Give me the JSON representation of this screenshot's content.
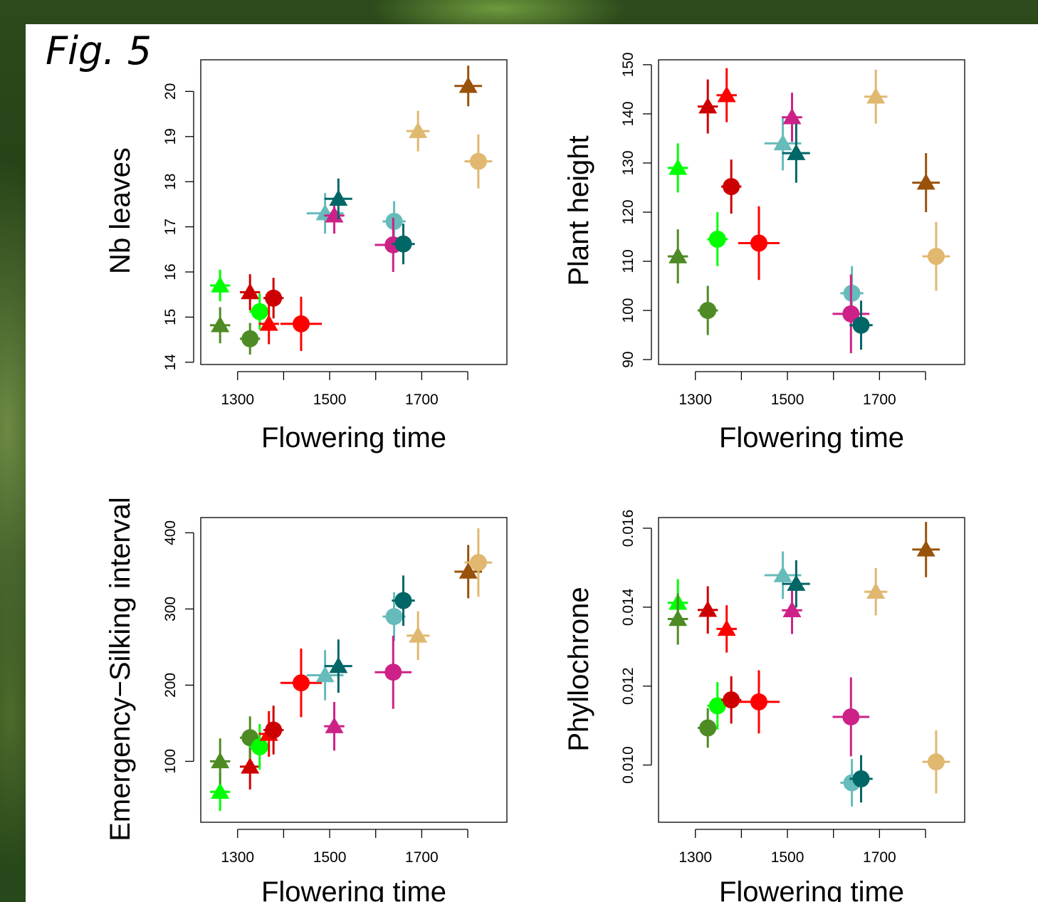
{
  "figure_label": "Fig. 5",
  "chart_data": [
    {
      "type": "scatter",
      "xlabel": "Flowering time",
      "ylabel": "Nb leaves",
      "xlim": [
        1220,
        1885
      ],
      "ylim": [
        13.95,
        20.7
      ],
      "x_ticks": [
        1300,
        1500,
        1700
      ],
      "y_ticks": [
        14,
        15,
        16,
        17,
        18,
        19,
        20
      ],
      "points": [
        {
          "x": 1262,
          "y": 15.7,
          "xerr": 22,
          "yerr": 0.35,
          "marker": "triangle",
          "color": "#00ff00"
        },
        {
          "x": 1262,
          "y": 14.82,
          "xerr": 22,
          "yerr": 0.4,
          "marker": "triangle",
          "color": "#4e8b24"
        },
        {
          "x": 1327,
          "y": 15.55,
          "xerr": 22,
          "yerr": 0.4,
          "marker": "triangle",
          "color": "#cc0000"
        },
        {
          "x": 1327,
          "y": 14.52,
          "xerr": 22,
          "yerr": 0.35,
          "marker": "circle",
          "color": "#4e8b24"
        },
        {
          "x": 1348,
          "y": 15.12,
          "xerr": 22,
          "yerr": 0.4,
          "marker": "circle",
          "color": "#00ff00"
        },
        {
          "x": 1368,
          "y": 14.85,
          "xerr": 22,
          "yerr": 0.45,
          "marker": "triangle",
          "color": "#ff0000"
        },
        {
          "x": 1378,
          "y": 15.42,
          "xerr": 22,
          "yerr": 0.45,
          "marker": "circle",
          "color": "#cc0000"
        },
        {
          "x": 1438,
          "y": 14.85,
          "xerr": 45,
          "yerr": 0.6,
          "marker": "circle",
          "color": "#ff0000"
        },
        {
          "x": 1490,
          "y": 17.3,
          "xerr": 40,
          "yerr": 0.45,
          "marker": "triangle",
          "color": "#66bbbb"
        },
        {
          "x": 1510,
          "y": 17.25,
          "xerr": 22,
          "yerr": 0.4,
          "marker": "triangle",
          "color": "#cc2288"
        },
        {
          "x": 1519,
          "y": 17.62,
          "xerr": 30,
          "yerr": 0.45,
          "marker": "triangle",
          "color": "#006666"
        },
        {
          "x": 1640,
          "y": 17.12,
          "xerr": 25,
          "yerr": 0.45,
          "marker": "circle",
          "color": "#66bbbb"
        },
        {
          "x": 1638,
          "y": 16.6,
          "xerr": 40,
          "yerr": 0.6,
          "marker": "circle",
          "color": "#cc2288"
        },
        {
          "x": 1660,
          "y": 16.62,
          "xerr": 25,
          "yerr": 0.45,
          "marker": "circle",
          "color": "#006666"
        },
        {
          "x": 1692,
          "y": 19.12,
          "xerr": 25,
          "yerr": 0.45,
          "marker": "triangle",
          "color": "#e0b870"
        },
        {
          "x": 1801,
          "y": 20.12,
          "xerr": 30,
          "yerr": 0.45,
          "marker": "triangle",
          "color": "#99520a"
        },
        {
          "x": 1823,
          "y": 18.45,
          "xerr": 30,
          "yerr": 0.6,
          "marker": "circle",
          "color": "#e0b870"
        }
      ]
    },
    {
      "type": "scatter",
      "xlabel": "Flowering time",
      "ylabel": "Plant height",
      "xlim": [
        1220,
        1885
      ],
      "ylim": [
        89,
        151
      ],
      "x_ticks": [
        1300,
        1500,
        1700
      ],
      "y_ticks": [
        90,
        100,
        110,
        120,
        130,
        140,
        150
      ],
      "points": [
        {
          "x": 1262,
          "y": 129,
          "xerr": 22,
          "yerr": 5,
          "marker": "triangle",
          "color": "#00ff00"
        },
        {
          "x": 1262,
          "y": 111,
          "xerr": 22,
          "yerr": 5.5,
          "marker": "triangle",
          "color": "#4e8b24"
        },
        {
          "x": 1327,
          "y": 141.5,
          "xerr": 22,
          "yerr": 5.5,
          "marker": "triangle",
          "color": "#cc0000"
        },
        {
          "x": 1327,
          "y": 100,
          "xerr": 22,
          "yerr": 5,
          "marker": "circle",
          "color": "#4e8b24"
        },
        {
          "x": 1348,
          "y": 114.5,
          "xerr": 22,
          "yerr": 5.5,
          "marker": "circle",
          "color": "#00ff00"
        },
        {
          "x": 1368,
          "y": 143.8,
          "xerr": 22,
          "yerr": 5.5,
          "marker": "triangle",
          "color": "#ff0000"
        },
        {
          "x": 1378,
          "y": 125.2,
          "xerr": 22,
          "yerr": 5.5,
          "marker": "circle",
          "color": "#cc0000"
        },
        {
          "x": 1438,
          "y": 113.7,
          "xerr": 45,
          "yerr": 7.5,
          "marker": "circle",
          "color": "#ff0000"
        },
        {
          "x": 1490,
          "y": 134,
          "xerr": 40,
          "yerr": 5.5,
          "marker": "triangle",
          "color": "#66bbbb"
        },
        {
          "x": 1510,
          "y": 139.3,
          "xerr": 22,
          "yerr": 5,
          "marker": "triangle",
          "color": "#cc2288"
        },
        {
          "x": 1519,
          "y": 132,
          "xerr": 30,
          "yerr": 6,
          "marker": "triangle",
          "color": "#006666"
        },
        {
          "x": 1640,
          "y": 103.5,
          "xerr": 25,
          "yerr": 5.5,
          "marker": "circle",
          "color": "#66bbbb"
        },
        {
          "x": 1638,
          "y": 99.3,
          "xerr": 40,
          "yerr": 8,
          "marker": "circle",
          "color": "#cc2288"
        },
        {
          "x": 1660,
          "y": 97,
          "xerr": 25,
          "yerr": 5,
          "marker": "circle",
          "color": "#006666"
        },
        {
          "x": 1692,
          "y": 143.5,
          "xerr": 25,
          "yerr": 5.5,
          "marker": "triangle",
          "color": "#e0b870"
        },
        {
          "x": 1801,
          "y": 126,
          "xerr": 30,
          "yerr": 6,
          "marker": "triangle",
          "color": "#99520a"
        },
        {
          "x": 1823,
          "y": 111,
          "xerr": 30,
          "yerr": 7,
          "marker": "circle",
          "color": "#e0b870"
        }
      ]
    },
    {
      "type": "scatter",
      "xlabel": "Flowering time",
      "ylabel": "Emergency−Silking interval",
      "xlim": [
        1220,
        1885
      ],
      "ylim": [
        20,
        420
      ],
      "x_ticks": [
        1300,
        1500,
        1700
      ],
      "y_ticks": [
        100,
        200,
        300,
        400
      ],
      "points": [
        {
          "x": 1262,
          "y": 60,
          "xerr": 22,
          "yerr": 25,
          "marker": "triangle",
          "color": "#00ff00"
        },
        {
          "x": 1262,
          "y": 100,
          "xerr": 22,
          "yerr": 30,
          "marker": "triangle",
          "color": "#4e8b24"
        },
        {
          "x": 1327,
          "y": 93,
          "xerr": 22,
          "yerr": 30,
          "marker": "triangle",
          "color": "#cc0000"
        },
        {
          "x": 1327,
          "y": 131,
          "xerr": 22,
          "yerr": 28,
          "marker": "circle",
          "color": "#4e8b24"
        },
        {
          "x": 1348,
          "y": 119,
          "xerr": 22,
          "yerr": 30,
          "marker": "circle",
          "color": "#00ff00"
        },
        {
          "x": 1368,
          "y": 136,
          "xerr": 22,
          "yerr": 30,
          "marker": "triangle",
          "color": "#ff0000"
        },
        {
          "x": 1378,
          "y": 141,
          "xerr": 22,
          "yerr": 32,
          "marker": "circle",
          "color": "#cc0000"
        },
        {
          "x": 1438,
          "y": 203,
          "xerr": 45,
          "yerr": 45,
          "marker": "circle",
          "color": "#ff0000"
        },
        {
          "x": 1490,
          "y": 213,
          "xerr": 40,
          "yerr": 33,
          "marker": "triangle",
          "color": "#66bbbb"
        },
        {
          "x": 1510,
          "y": 146,
          "xerr": 22,
          "yerr": 32,
          "marker": "triangle",
          "color": "#cc2288"
        },
        {
          "x": 1519,
          "y": 225,
          "xerr": 30,
          "yerr": 35,
          "marker": "triangle",
          "color": "#006666"
        },
        {
          "x": 1640,
          "y": 290,
          "xerr": 25,
          "yerr": 32,
          "marker": "circle",
          "color": "#66bbbb"
        },
        {
          "x": 1638,
          "y": 217,
          "xerr": 40,
          "yerr": 48,
          "marker": "circle",
          "color": "#cc2288"
        },
        {
          "x": 1660,
          "y": 311,
          "xerr": 25,
          "yerr": 33,
          "marker": "circle",
          "color": "#006666"
        },
        {
          "x": 1692,
          "y": 265,
          "xerr": 25,
          "yerr": 32,
          "marker": "triangle",
          "color": "#e0b870"
        },
        {
          "x": 1801,
          "y": 349,
          "xerr": 30,
          "yerr": 35,
          "marker": "triangle",
          "color": "#99520a"
        },
        {
          "x": 1823,
          "y": 361,
          "xerr": 30,
          "yerr": 45,
          "marker": "circle",
          "color": "#e0b870"
        }
      ]
    },
    {
      "type": "scatter",
      "xlabel": "Flowering time",
      "ylabel": "Phyllochrone",
      "xlim": [
        1220,
        1885
      ],
      "ylim": [
        0.00855,
        0.01627
      ],
      "x_ticks": [
        1300,
        1500,
        1700
      ],
      "y_ticks": [
        0.01,
        0.012,
        0.014,
        0.016
      ],
      "y_tick_labels": [
        "0.010",
        "0.012",
        "0.014",
        "0.016"
      ],
      "points": [
        {
          "x": 1262,
          "y": 0.01411,
          "xerr": 22,
          "yerr": 0.0006,
          "marker": "triangle",
          "color": "#00ff00"
        },
        {
          "x": 1262,
          "y": 0.0137,
          "xerr": 22,
          "yerr": 0.00065,
          "marker": "triangle",
          "color": "#4e8b24"
        },
        {
          "x": 1327,
          "y": 0.01393,
          "xerr": 22,
          "yerr": 0.0006,
          "marker": "triangle",
          "color": "#cc0000"
        },
        {
          "x": 1327,
          "y": 0.01094,
          "xerr": 22,
          "yerr": 0.0005,
          "marker": "circle",
          "color": "#4e8b24"
        },
        {
          "x": 1348,
          "y": 0.0115,
          "xerr": 22,
          "yerr": 0.0006,
          "marker": "circle",
          "color": "#00ff00"
        },
        {
          "x": 1368,
          "y": 0.01345,
          "xerr": 22,
          "yerr": 0.0006,
          "marker": "triangle",
          "color": "#ff0000"
        },
        {
          "x": 1378,
          "y": 0.01165,
          "xerr": 22,
          "yerr": 0.0006,
          "marker": "circle",
          "color": "#cc0000"
        },
        {
          "x": 1438,
          "y": 0.0116,
          "xerr": 45,
          "yerr": 0.0008,
          "marker": "circle",
          "color": "#ff0000"
        },
        {
          "x": 1490,
          "y": 0.01481,
          "xerr": 40,
          "yerr": 0.0006,
          "marker": "triangle",
          "color": "#66bbbb"
        },
        {
          "x": 1510,
          "y": 0.01392,
          "xerr": 22,
          "yerr": 0.0006,
          "marker": "triangle",
          "color": "#cc2288"
        },
        {
          "x": 1519,
          "y": 0.01459,
          "xerr": 30,
          "yerr": 0.0006,
          "marker": "triangle",
          "color": "#006666"
        },
        {
          "x": 1640,
          "y": 0.00955,
          "xerr": 25,
          "yerr": 0.0006,
          "marker": "circle",
          "color": "#66bbbb"
        },
        {
          "x": 1638,
          "y": 0.01122,
          "xerr": 40,
          "yerr": 0.001,
          "marker": "circle",
          "color": "#cc2288"
        },
        {
          "x": 1660,
          "y": 0.00965,
          "xerr": 25,
          "yerr": 0.0006,
          "marker": "circle",
          "color": "#006666"
        },
        {
          "x": 1692,
          "y": 0.01439,
          "xerr": 25,
          "yerr": 0.0006,
          "marker": "triangle",
          "color": "#e0b870"
        },
        {
          "x": 1801,
          "y": 0.01546,
          "xerr": 30,
          "yerr": 0.0007,
          "marker": "triangle",
          "color": "#99520a"
        },
        {
          "x": 1823,
          "y": 0.01008,
          "xerr": 30,
          "yerr": 0.0008,
          "marker": "circle",
          "color": "#e0b870"
        }
      ]
    }
  ]
}
